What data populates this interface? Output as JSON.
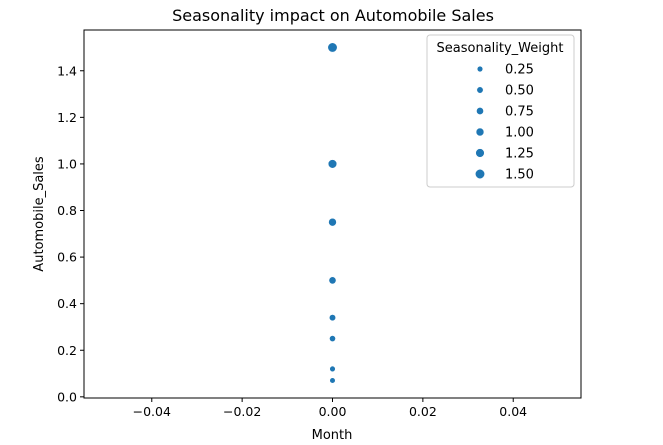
{
  "chart_data": {
    "type": "scatter",
    "title": "Seasonality impact on Automobile Sales",
    "xlabel": "Month",
    "ylabel": "Automobile_Sales",
    "xlim": [
      -0.055,
      0.055
    ],
    "ylim": [
      -0.005,
      1.575
    ],
    "x_ticks": [
      -0.04,
      -0.02,
      0.0,
      0.02,
      0.04
    ],
    "x_tick_labels": [
      "−0.04",
      "−0.02",
      "0.00",
      "0.02",
      "0.04"
    ],
    "y_ticks": [
      0.0,
      0.2,
      0.4,
      0.6,
      0.8,
      1.0,
      1.2,
      1.4
    ],
    "y_tick_labels": [
      "0.0",
      "0.2",
      "0.4",
      "0.6",
      "0.8",
      "1.0",
      "1.2",
      "1.4"
    ],
    "grid": false,
    "color": "#1f77b4",
    "points": [
      {
        "x": 0,
        "y": 1.5,
        "size": 1.5
      },
      {
        "x": 0,
        "y": 1.0,
        "size": 1.25
      },
      {
        "x": 0,
        "y": 0.75,
        "size": 1.0
      },
      {
        "x": 0,
        "y": 0.5,
        "size": 0.75
      },
      {
        "x": 0,
        "y": 0.34,
        "size": 0.5
      },
      {
        "x": 0,
        "y": 0.25,
        "size": 0.4
      },
      {
        "x": 0,
        "y": 0.12,
        "size": 0.25
      },
      {
        "x": 0,
        "y": 0.07,
        "size": 0.2
      }
    ],
    "legend": {
      "title": "Seasonality_Weight",
      "placement": "top-right",
      "entries": [
        {
          "label": "0.25",
          "size": 0.25
        },
        {
          "label": "0.50",
          "size": 0.5
        },
        {
          "label": "0.75",
          "size": 0.75
        },
        {
          "label": "1.00",
          "size": 1.0
        },
        {
          "label": "1.25",
          "size": 1.25
        },
        {
          "label": "1.50",
          "size": 1.5
        }
      ]
    }
  }
}
